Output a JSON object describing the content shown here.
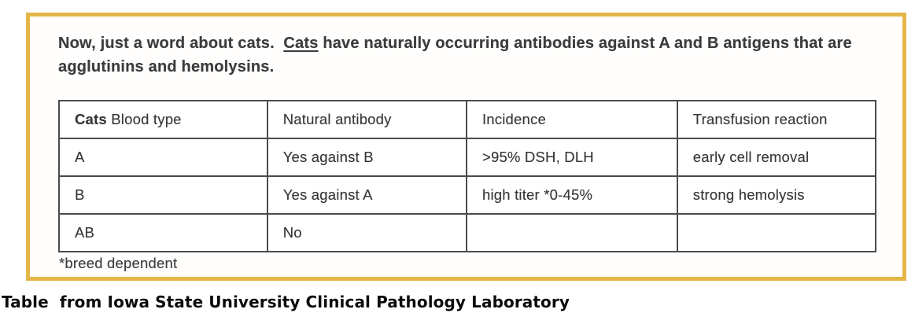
{
  "panel": {
    "border_color": "#E4B647",
    "intro": {
      "prefix": "Now, just a word about cats.  ",
      "underlined": "Cats",
      "suffix": " have naturally occurring antibodies against A and B antigens that are agglutinins and hemolysins."
    },
    "table": {
      "headers": [
        {
          "bold": "Cats",
          "rest": " Blood type"
        },
        {
          "bold": "",
          "rest": "Natural antibody"
        },
        {
          "bold": "",
          "rest": "Incidence"
        },
        {
          "bold": "",
          "rest": "Transfusion reaction"
        }
      ],
      "rows": [
        [
          "A",
          "Yes against B",
          ">95% DSH, DLH",
          "early cell removal"
        ],
        [
          "B",
          "Yes against A",
          "high titer *0-45%",
          "strong hemolysis"
        ],
        [
          "AB",
          "No",
          "",
          ""
        ]
      ],
      "footnote": "*breed dependent"
    }
  },
  "caption": "Table  from Iowa State University Clinical Pathology Laboratory"
}
